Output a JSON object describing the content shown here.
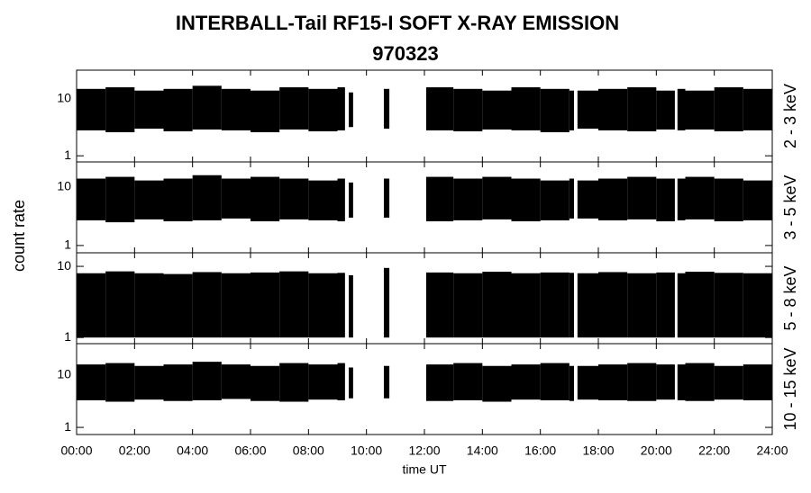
{
  "chart_data": {
    "type": "range",
    "title": "INTERBALL-Tail RF15-I SOFT X-RAY EMISSION",
    "subtitle": "970323",
    "xlabel": "time UT",
    "ylabel": "count rate",
    "color": "#000000",
    "log": true,
    "xlim": [
      0,
      24
    ],
    "xticks": [
      {
        "value": 0,
        "label": "00:00"
      },
      {
        "value": 2,
        "label": "02:00"
      },
      {
        "value": 4,
        "label": "04:00"
      },
      {
        "value": 6,
        "label": "06:00"
      },
      {
        "value": 8,
        "label": "08:00"
      },
      {
        "value": 10,
        "label": "10:00"
      },
      {
        "value": 12,
        "label": "12:00"
      },
      {
        "value": 14,
        "label": "14:00"
      },
      {
        "value": 16,
        "label": "16:00"
      },
      {
        "value": 18,
        "label": "18:00"
      },
      {
        "value": 20,
        "label": "20:00"
      },
      {
        "value": 22,
        "label": "22:00"
      },
      {
        "value": 24,
        "label": "24:00"
      }
    ],
    "x": [
      0,
      1,
      2,
      3,
      4,
      5,
      6,
      7,
      8,
      9,
      9.26,
      9.33,
      9.39,
      9.54,
      9.6,
      10.6,
      10.79,
      11,
      12.06,
      13,
      14,
      15,
      16,
      17,
      17.16,
      17.22,
      17.28,
      18,
      19,
      20,
      20.64,
      20.68,
      20.73,
      21,
      22,
      23,
      24
    ],
    "panels": [
      {
        "label": "2 - 3 keV",
        "ylim": [
          0.78,
          32
        ],
        "yticks": [
          1,
          10
        ],
        "high": [
          15,
          16,
          14,
          15,
          17,
          15,
          14,
          16,
          15,
          16,
          14,
          null,
          13,
          14,
          null,
          15,
          14,
          null,
          16,
          15,
          14,
          16,
          15,
          14,
          13,
          null,
          14,
          15,
          16,
          14,
          13,
          null,
          15,
          14,
          16,
          15,
          14
        ],
        "low": [
          2.8,
          2.6,
          3,
          2.7,
          2.9,
          2.8,
          2.6,
          2.9,
          2.7,
          2.8,
          3,
          null,
          3.2,
          3.1,
          null,
          3,
          3.2,
          null,
          2.8,
          2.7,
          2.9,
          2.8,
          2.6,
          2.8,
          3,
          null,
          3,
          2.8,
          2.7,
          2.9,
          3,
          null,
          2.8,
          2.9,
          2.7,
          2.8,
          2.9
        ]
      },
      {
        "label": "3 - 5 keV",
        "ylim": [
          0.75,
          27
        ],
        "yticks": [
          1,
          10
        ],
        "high": [
          14,
          15,
          13,
          14,
          16,
          14,
          15,
          14,
          13,
          14,
          13,
          null,
          12,
          13,
          null,
          14,
          13,
          null,
          15,
          14,
          15,
          14,
          13,
          14,
          12,
          null,
          13,
          14,
          15,
          14,
          13,
          null,
          14,
          15,
          14,
          13,
          14
        ],
        "low": [
          2.7,
          2.5,
          2.8,
          2.6,
          2.7,
          2.9,
          2.6,
          2.8,
          2.7,
          2.6,
          2.9,
          null,
          3,
          3,
          null,
          3,
          3.1,
          null,
          2.6,
          2.7,
          2.8,
          2.6,
          2.7,
          2.9,
          3,
          null,
          2.9,
          2.7,
          2.8,
          2.6,
          2.9,
          null,
          2.7,
          2.8,
          2.6,
          2.7,
          2.8
        ]
      },
      {
        "label": "5 - 8 keV",
        "ylim": [
          0.82,
          15.5
        ],
        "yticks": [
          1,
          10
        ],
        "high": [
          8,
          8.5,
          8,
          7.8,
          8.3,
          8,
          8.2,
          8.5,
          8,
          8.1,
          7.8,
          null,
          7.5,
          7.8,
          null,
          9.5,
          8.5,
          null,
          8.2,
          8,
          8.4,
          8,
          8.2,
          8.1,
          7.6,
          null,
          8,
          8.3,
          8,
          8.2,
          7.8,
          null,
          8,
          8.4,
          8.1,
          8,
          8.2
        ],
        "low": [
          1,
          1,
          1,
          1,
          1,
          1,
          1,
          1,
          1,
          1,
          1,
          null,
          1,
          1,
          null,
          1,
          1,
          null,
          1,
          1,
          1,
          1,
          1,
          1,
          1,
          null,
          1,
          1,
          1,
          1,
          1,
          null,
          1,
          1,
          1,
          1,
          1
        ]
      },
      {
        "label": "10 - 15 keV",
        "ylim": [
          0.73,
          40
        ],
        "yticks": [
          1,
          10
        ],
        "high": [
          16,
          17,
          15,
          16,
          18,
          16,
          15,
          17,
          16,
          17,
          15,
          null,
          14,
          15,
          null,
          15,
          15,
          null,
          16,
          17,
          15,
          16,
          17,
          15,
          14,
          null,
          15,
          16,
          17,
          16,
          15,
          null,
          16,
          17,
          15,
          16,
          17
        ],
        "low": [
          3.3,
          3.1,
          3.4,
          3.2,
          3.3,
          3.5,
          3.2,
          3.1,
          3.4,
          3.3,
          3.5,
          null,
          3.6,
          3.5,
          null,
          3.6,
          3.5,
          null,
          3.2,
          3.3,
          3.1,
          3.4,
          3.3,
          3.2,
          3.5,
          null,
          3.4,
          3.3,
          3.2,
          3.4,
          3.5,
          null,
          3.3,
          3.2,
          3.4,
          3.3,
          3.2
        ]
      }
    ]
  }
}
